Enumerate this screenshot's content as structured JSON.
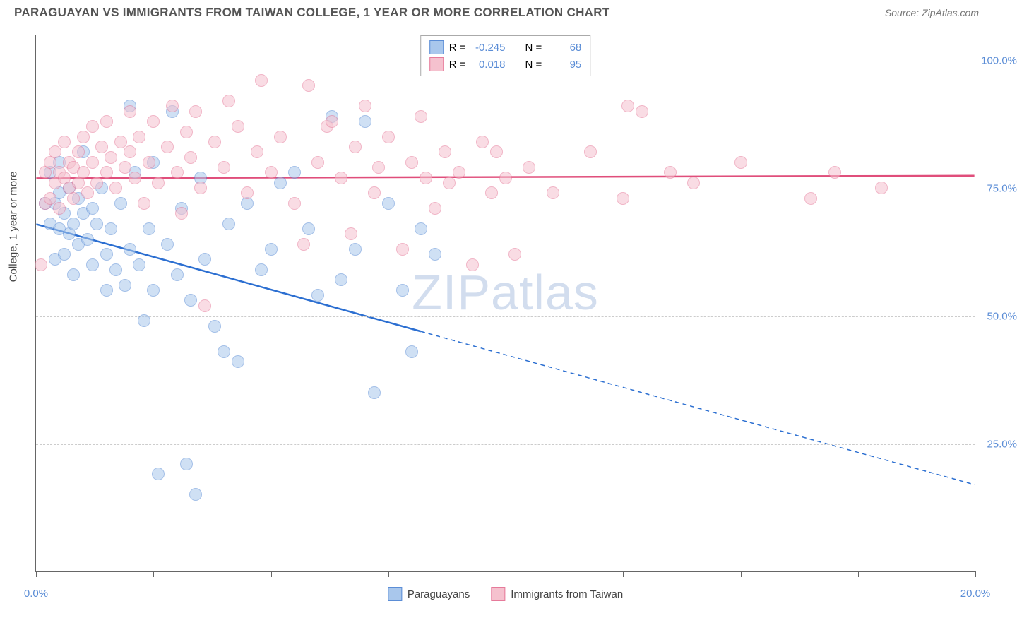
{
  "header": {
    "title": "PARAGUAYAN VS IMMIGRANTS FROM TAIWAN COLLEGE, 1 YEAR OR MORE CORRELATION CHART",
    "source": "Source: ZipAtlas.com"
  },
  "chart": {
    "type": "scatter",
    "ylabel": "College, 1 year or more",
    "watermark": "ZIPatlas",
    "background_color": "#ffffff",
    "grid_color": "#cccccc",
    "axis_color": "#666666",
    "xlim": [
      0,
      20
    ],
    "ylim": [
      0,
      105
    ],
    "xtick_positions": [
      0,
      2.5,
      5,
      7.5,
      10,
      12.5,
      15,
      17.5,
      20
    ],
    "xtick_labels": {
      "0": "0.0%",
      "20": "20.0%"
    },
    "ytick_positions": [
      25,
      50,
      75,
      100
    ],
    "ytick_labels": {
      "25": "25.0%",
      "50": "50.0%",
      "75": "75.0%",
      "100": "100.0%"
    },
    "label_color": "#5b8dd6",
    "label_fontsize": 15,
    "title_fontsize": 17,
    "title_color": "#555555",
    "point_radius": 9,
    "point_opacity": 0.55,
    "series": [
      {
        "name": "Paraguayans",
        "fill_color": "#a9c7ec",
        "stroke_color": "#5b8dd6",
        "line_color": "#2c6fd1",
        "R": "-0.245",
        "N": "68",
        "trend": {
          "x1": 0,
          "y1": 68,
          "x2_solid": 8.2,
          "y2_solid": 47,
          "x2": 20,
          "y2": 17
        },
        "points": [
          [
            0.2,
            72
          ],
          [
            0.3,
            68
          ],
          [
            0.3,
            78
          ],
          [
            0.4,
            72
          ],
          [
            0.4,
            61
          ],
          [
            0.5,
            74
          ],
          [
            0.5,
            67
          ],
          [
            0.5,
            80
          ],
          [
            0.6,
            70
          ],
          [
            0.6,
            62
          ],
          [
            0.7,
            66
          ],
          [
            0.7,
            75
          ],
          [
            0.8,
            68
          ],
          [
            0.8,
            58
          ],
          [
            0.9,
            73
          ],
          [
            0.9,
            64
          ],
          [
            1.0,
            82
          ],
          [
            1.0,
            70
          ],
          [
            1.1,
            65
          ],
          [
            1.2,
            71
          ],
          [
            1.2,
            60
          ],
          [
            1.3,
            68
          ],
          [
            1.4,
            75
          ],
          [
            1.5,
            62
          ],
          [
            1.5,
            55
          ],
          [
            1.6,
            67
          ],
          [
            1.7,
            59
          ],
          [
            1.8,
            72
          ],
          [
            1.9,
            56
          ],
          [
            2.0,
            91
          ],
          [
            2.0,
            63
          ],
          [
            2.1,
            78
          ],
          [
            2.2,
            60
          ],
          [
            2.3,
            49
          ],
          [
            2.4,
            67
          ],
          [
            2.5,
            80
          ],
          [
            2.5,
            55
          ],
          [
            2.6,
            19
          ],
          [
            2.8,
            64
          ],
          [
            2.9,
            90
          ],
          [
            3.0,
            58
          ],
          [
            3.1,
            71
          ],
          [
            3.2,
            21
          ],
          [
            3.3,
            53
          ],
          [
            3.4,
            15
          ],
          [
            3.5,
            77
          ],
          [
            3.6,
            61
          ],
          [
            3.8,
            48
          ],
          [
            4.0,
            43
          ],
          [
            4.1,
            68
          ],
          [
            4.3,
            41
          ],
          [
            4.5,
            72
          ],
          [
            4.8,
            59
          ],
          [
            5.0,
            63
          ],
          [
            5.2,
            76
          ],
          [
            5.5,
            78
          ],
          [
            5.8,
            67
          ],
          [
            6.0,
            54
          ],
          [
            6.3,
            89
          ],
          [
            6.5,
            57
          ],
          [
            6.8,
            63
          ],
          [
            7.0,
            88
          ],
          [
            7.2,
            35
          ],
          [
            7.5,
            72
          ],
          [
            7.8,
            55
          ],
          [
            8.0,
            43
          ],
          [
            8.2,
            67
          ],
          [
            8.5,
            62
          ]
        ]
      },
      {
        "name": "Immigrants from Taiwan",
        "fill_color": "#f5c1ce",
        "stroke_color": "#e67a9a",
        "line_color": "#e04e7b",
        "R": "0.018",
        "N": "95",
        "trend": {
          "x1": 0,
          "y1": 77,
          "x2_solid": 20,
          "y2_solid": 77.5,
          "x2": 20,
          "y2": 77.5
        },
        "points": [
          [
            0.1,
            60
          ],
          [
            0.2,
            78
          ],
          [
            0.2,
            72
          ],
          [
            0.3,
            80
          ],
          [
            0.3,
            73
          ],
          [
            0.4,
            76
          ],
          [
            0.4,
            82
          ],
          [
            0.5,
            78
          ],
          [
            0.5,
            71
          ],
          [
            0.6,
            84
          ],
          [
            0.6,
            77
          ],
          [
            0.7,
            75
          ],
          [
            0.7,
            80
          ],
          [
            0.8,
            79
          ],
          [
            0.8,
            73
          ],
          [
            0.9,
            82
          ],
          [
            0.9,
            76
          ],
          [
            1.0,
            78
          ],
          [
            1.0,
            85
          ],
          [
            1.1,
            74
          ],
          [
            1.2,
            80
          ],
          [
            1.2,
            87
          ],
          [
            1.3,
            76
          ],
          [
            1.4,
            83
          ],
          [
            1.5,
            78
          ],
          [
            1.5,
            88
          ],
          [
            1.6,
            81
          ],
          [
            1.7,
            75
          ],
          [
            1.8,
            84
          ],
          [
            1.9,
            79
          ],
          [
            2.0,
            82
          ],
          [
            2.0,
            90
          ],
          [
            2.1,
            77
          ],
          [
            2.2,
            85
          ],
          [
            2.3,
            72
          ],
          [
            2.4,
            80
          ],
          [
            2.5,
            88
          ],
          [
            2.6,
            76
          ],
          [
            2.8,
            83
          ],
          [
            2.9,
            91
          ],
          [
            3.0,
            78
          ],
          [
            3.1,
            70
          ],
          [
            3.2,
            86
          ],
          [
            3.3,
            81
          ],
          [
            3.4,
            90
          ],
          [
            3.5,
            75
          ],
          [
            3.6,
            52
          ],
          [
            3.8,
            84
          ],
          [
            4.0,
            79
          ],
          [
            4.1,
            92
          ],
          [
            4.3,
            87
          ],
          [
            4.5,
            74
          ],
          [
            4.7,
            82
          ],
          [
            4.8,
            96
          ],
          [
            5.0,
            78
          ],
          [
            5.2,
            85
          ],
          [
            5.5,
            72
          ],
          [
            5.7,
            64
          ],
          [
            5.8,
            95
          ],
          [
            6.0,
            80
          ],
          [
            6.2,
            87
          ],
          [
            6.3,
            88
          ],
          [
            6.5,
            77
          ],
          [
            6.7,
            66
          ],
          [
            6.8,
            83
          ],
          [
            7.0,
            91
          ],
          [
            7.2,
            74
          ],
          [
            7.3,
            79
          ],
          [
            7.5,
            85
          ],
          [
            7.8,
            63
          ],
          [
            8.0,
            80
          ],
          [
            8.2,
            89
          ],
          [
            8.3,
            77
          ],
          [
            8.5,
            71
          ],
          [
            8.7,
            82
          ],
          [
            8.8,
            76
          ],
          [
            9.0,
            78
          ],
          [
            9.3,
            60
          ],
          [
            9.5,
            84
          ],
          [
            9.7,
            74
          ],
          [
            9.8,
            82
          ],
          [
            10.0,
            77
          ],
          [
            10.2,
            62
          ],
          [
            10.5,
            79
          ],
          [
            11.0,
            74
          ],
          [
            11.8,
            82
          ],
          [
            12.5,
            73
          ],
          [
            12.6,
            91
          ],
          [
            12.9,
            90
          ],
          [
            13.5,
            78
          ],
          [
            14.0,
            76
          ],
          [
            15.0,
            80
          ],
          [
            16.5,
            73
          ],
          [
            17.0,
            78
          ],
          [
            18.0,
            75
          ]
        ]
      }
    ],
    "legend_top": {
      "r_label": "R =",
      "n_label": "N ="
    }
  }
}
